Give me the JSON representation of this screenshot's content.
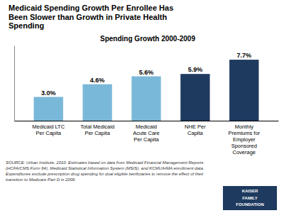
{
  "chart_data": {
    "type": "bar",
    "title": "Medicaid Spending Growth Per Enrollee Has\nBeen Slower than Growth in Private Health\nSpending",
    "subtitle": "Spending Growth 2000-2009",
    "categories": [
      "Medicaid LTC\nPer Capita",
      "Total Medicaid\nPer Capita",
      "Medicaid\nAcute Care\nPer Capita",
      "NHE Per\nCapita",
      "Monthly\nPremiums for\nEmployer\nSponsored\nCoverage"
    ],
    "values": [
      3.0,
      4.6,
      5.6,
      5.9,
      7.7
    ],
    "value_labels": [
      "3.0%",
      "4.6%",
      "5.6%",
      "5.9%",
      "7.7%"
    ],
    "data_labels": true,
    "colors": [
      "#7ab8d9",
      "#7ab8d9",
      "#7ab8d9",
      "#1e3a5f",
      "#1e3a5f"
    ],
    "ylim": [
      0,
      9.5
    ],
    "tick_labels": "x",
    "grid": false,
    "annotations": [
      "SOURCE: Urban Institute, 2010. Estimates based on data from Medicaid Financial Management Reports\n(HCFA/CMS Form 64), Medicaid Statistical Information System (MSIS), and KCMU/HMA enrollment data.\nExpenditures exclude prescription drug spending for dual eligible benficiaries to remove the effect of their\ntransition to Medicare Part D in 2006.",
      "KAISER",
      "FAMILY",
      "FOUNDATION"
    ]
  }
}
